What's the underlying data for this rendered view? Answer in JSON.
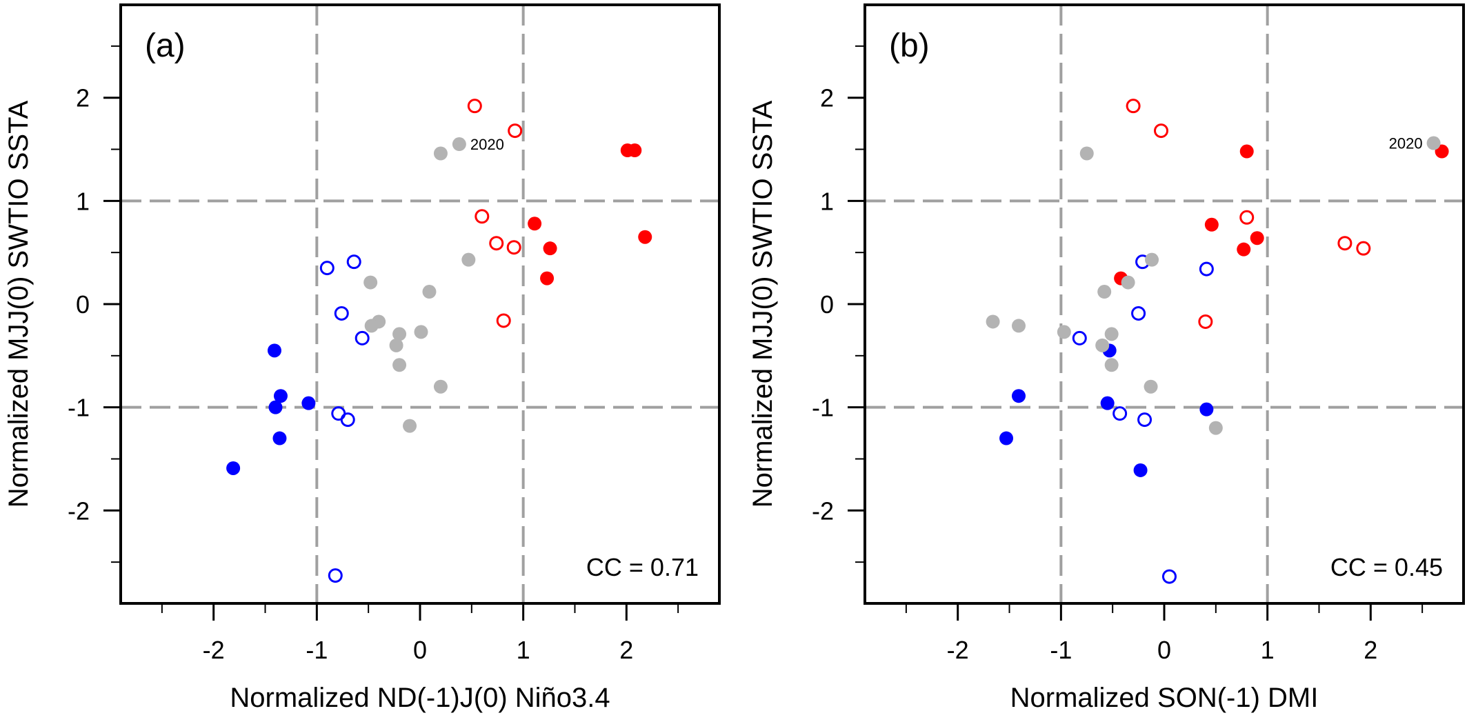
{
  "chart_data": [
    {
      "type": "scatter",
      "panel_label": "(a)",
      "xlabel": "Normalized ND(-1)J(0) Niño3.4",
      "ylabel": "Normalized MJJ(0) SWTIO SSTA",
      "xlim": [
        -2.9,
        2.9
      ],
      "ylim": [
        -2.9,
        2.9
      ],
      "xticks": [
        -2,
        -1,
        0,
        1,
        2
      ],
      "yticks": [
        -2,
        -1,
        0,
        1,
        2
      ],
      "xtick_labels": [
        "-2",
        "-1",
        "0",
        "1",
        "2"
      ],
      "ytick_labels": [
        "-2",
        "-1",
        "0",
        "1",
        "2"
      ],
      "minor_tick_step": 0.5,
      "reference_lines": {
        "x": [
          -1,
          1
        ],
        "y": [
          -1,
          1
        ],
        "style": "dashed",
        "color": "#a0a0a0"
      },
      "annotation": "CC = 0.71",
      "highlight": {
        "label": "2020",
        "x": 0.38,
        "y": 1.55
      },
      "series": [
        {
          "name": "red-filled",
          "color": "#ff0000",
          "filled": true,
          "points": [
            [
              2.01,
              1.49
            ],
            [
              2.08,
              1.49
            ],
            [
              1.11,
              0.78
            ],
            [
              2.18,
              0.65
            ],
            [
              1.26,
              0.54
            ],
            [
              1.23,
              0.25
            ]
          ]
        },
        {
          "name": "red-open",
          "color": "#ff0000",
          "filled": false,
          "points": [
            [
              0.53,
              1.92
            ],
            [
              0.92,
              1.68
            ],
            [
              0.6,
              0.85
            ],
            [
              0.74,
              0.59
            ],
            [
              0.91,
              0.55
            ],
            [
              0.81,
              -0.16
            ]
          ]
        },
        {
          "name": "blue-filled",
          "color": "#0000ff",
          "filled": true,
          "points": [
            [
              -1.41,
              -0.45
            ],
            [
              -1.35,
              -0.89
            ],
            [
              -1.08,
              -0.96
            ],
            [
              -1.4,
              -1.0
            ],
            [
              -1.36,
              -1.3
            ],
            [
              -1.81,
              -1.59
            ]
          ]
        },
        {
          "name": "blue-open",
          "color": "#0000ff",
          "filled": false,
          "points": [
            [
              -0.9,
              0.35
            ],
            [
              -0.64,
              0.41
            ],
            [
              -0.76,
              -0.09
            ],
            [
              -0.56,
              -0.33
            ],
            [
              -0.79,
              -1.06
            ],
            [
              -0.7,
              -1.12
            ],
            [
              -0.82,
              -2.63
            ]
          ]
        },
        {
          "name": "gray-filled",
          "color": "#b3b3b3",
          "filled": true,
          "points": [
            [
              0.38,
              1.55
            ],
            [
              0.2,
              1.46
            ],
            [
              0.47,
              0.43
            ],
            [
              0.09,
              0.12
            ],
            [
              0.01,
              -0.27
            ],
            [
              -0.48,
              0.21
            ],
            [
              -0.4,
              -0.17
            ],
            [
              -0.47,
              -0.21
            ],
            [
              -0.2,
              -0.29
            ],
            [
              -0.23,
              -0.4
            ],
            [
              -0.2,
              -0.59
            ],
            [
              0.2,
              -0.8
            ],
            [
              -0.1,
              -1.18
            ]
          ]
        }
      ]
    },
    {
      "type": "scatter",
      "panel_label": "(b)",
      "xlabel": "Normalized SON(-1) DMI",
      "ylabel": "Normalized MJJ(0) SWTIO SSTA",
      "xlim": [
        -2.9,
        2.9
      ],
      "ylim": [
        -2.9,
        2.9
      ],
      "xticks": [
        -2,
        -1,
        0,
        1,
        2
      ],
      "yticks": [
        -2,
        -1,
        0,
        1,
        2
      ],
      "xtick_labels": [
        "-2",
        "-1",
        "0",
        "1",
        "2"
      ],
      "ytick_labels": [
        "-2",
        "-1",
        "0",
        "1",
        "2"
      ],
      "minor_tick_step": 0.5,
      "reference_lines": {
        "x": [
          -1,
          1
        ],
        "y": [
          -1,
          1
        ],
        "style": "dashed",
        "color": "#a0a0a0"
      },
      "annotation": "CC = 0.45",
      "highlight": {
        "label": "2020",
        "x": 2.61,
        "y": 1.56
      },
      "series": [
        {
          "name": "red-filled",
          "color": "#ff0000",
          "filled": true,
          "points": [
            [
              0.8,
              1.48
            ],
            [
              2.69,
              1.48
            ],
            [
              0.46,
              0.77
            ],
            [
              0.9,
              0.64
            ],
            [
              0.77,
              0.53
            ],
            [
              -0.42,
              0.25
            ]
          ]
        },
        {
          "name": "red-open",
          "color": "#ff0000",
          "filled": false,
          "points": [
            [
              -0.3,
              1.92
            ],
            [
              -0.03,
              1.68
            ],
            [
              0.8,
              0.84
            ],
            [
              1.75,
              0.59
            ],
            [
              1.93,
              0.54
            ],
            [
              0.4,
              -0.17
            ]
          ]
        },
        {
          "name": "blue-filled",
          "color": "#0000ff",
          "filled": true,
          "points": [
            [
              -0.53,
              -0.45
            ],
            [
              -1.41,
              -0.89
            ],
            [
              -0.55,
              -0.96
            ],
            [
              0.41,
              -1.02
            ],
            [
              -1.53,
              -1.3
            ],
            [
              -0.23,
              -1.61
            ]
          ]
        },
        {
          "name": "blue-open",
          "color": "#0000ff",
          "filled": false,
          "points": [
            [
              0.41,
              0.34
            ],
            [
              -0.21,
              0.41
            ],
            [
              -0.25,
              -0.09
            ],
            [
              -0.82,
              -0.33
            ],
            [
              -0.43,
              -1.06
            ],
            [
              -0.19,
              -1.12
            ],
            [
              0.05,
              -2.64
            ]
          ]
        },
        {
          "name": "gray-filled",
          "color": "#b3b3b3",
          "filled": true,
          "points": [
            [
              2.61,
              1.56
            ],
            [
              -0.75,
              1.46
            ],
            [
              -0.12,
              0.43
            ],
            [
              -0.58,
              0.12
            ],
            [
              -0.97,
              -0.27
            ],
            [
              -0.35,
              0.21
            ],
            [
              -1.66,
              -0.17
            ],
            [
              -1.41,
              -0.21
            ],
            [
              -0.51,
              -0.29
            ],
            [
              -0.6,
              -0.4
            ],
            [
              -0.51,
              -0.59
            ],
            [
              -0.13,
              -0.8
            ],
            [
              0.5,
              -1.2
            ]
          ]
        }
      ]
    }
  ]
}
